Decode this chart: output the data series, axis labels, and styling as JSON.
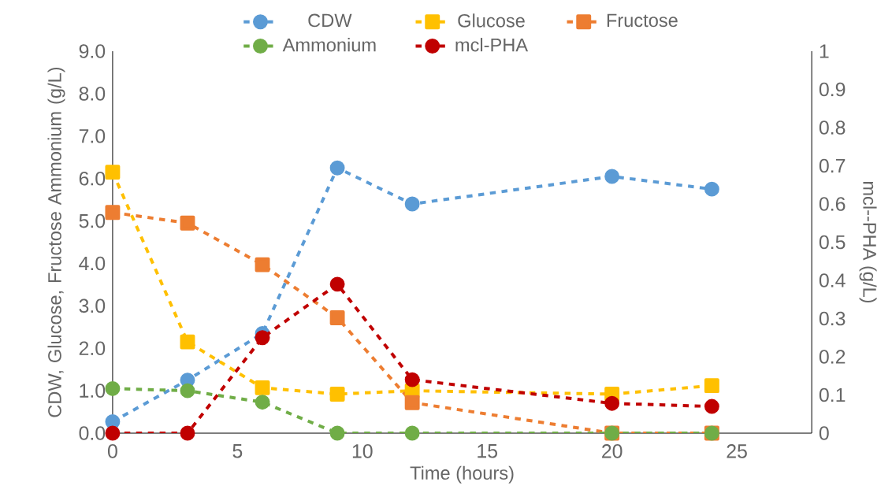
{
  "chart_data": {
    "type": "line",
    "xlabel": "Time (hours)",
    "ylabel": "CDW, Glucose, Fructose  Ammonium (g/L)",
    "y2label": "mcl--PHA (g/L)",
    "x": [
      0,
      3,
      6,
      9,
      12,
      20,
      24
    ],
    "xlim": [
      0,
      28
    ],
    "xticks": [
      0,
      5,
      10,
      15,
      20,
      25
    ],
    "ylim": [
      0,
      9
    ],
    "yticks": [
      {
        "value": 0,
        "label": "0.0"
      },
      {
        "value": 1,
        "label": "1.0"
      },
      {
        "value": 2,
        "label": "2.0"
      },
      {
        "value": 3,
        "label": "3.0"
      },
      {
        "value": 4,
        "label": "4.0"
      },
      {
        "value": 5,
        "label": "5.0"
      },
      {
        "value": 6,
        "label": "6.0"
      },
      {
        "value": 7,
        "label": "7.0"
      },
      {
        "value": 8,
        "label": "8.0"
      },
      {
        "value": 9,
        "label": "9.0"
      }
    ],
    "y2lim": [
      0,
      1
    ],
    "y2ticks": [
      0,
      0.1,
      0.2,
      0.3,
      0.4,
      0.5,
      0.6,
      0.7,
      0.8,
      0.9,
      1
    ],
    "grid": false,
    "legend": "top",
    "line_style": "dashed",
    "series": [
      {
        "name": "CDW",
        "color": "#5b9bd5",
        "marker": "circle",
        "values": [
          0.27,
          1.25,
          2.35,
          6.25,
          5.4,
          6.05,
          5.75
        ]
      },
      {
        "name": "Glucose",
        "color": "#ffc000",
        "marker": "square",
        "values": [
          6.15,
          2.15,
          1.07,
          0.92,
          1.0,
          0.92,
          1.12
        ]
      },
      {
        "name": "Fructose",
        "color": "#ed7d31",
        "marker": "square",
        "values": [
          5.2,
          4.95,
          3.97,
          2.72,
          0.72,
          0,
          0
        ]
      },
      {
        "name": "Ammonium",
        "color": "#70ad47",
        "marker": "circle",
        "values": [
          1.05,
          1.0,
          0.73,
          0,
          0,
          0,
          0
        ]
      },
      {
        "name": "mcl-PHA",
        "color": "#c00000",
        "marker": "circle",
        "axis": "y2",
        "values": [
          0,
          0,
          0.25,
          0.39,
          0.14,
          0.078,
          0.07
        ]
      }
    ]
  }
}
